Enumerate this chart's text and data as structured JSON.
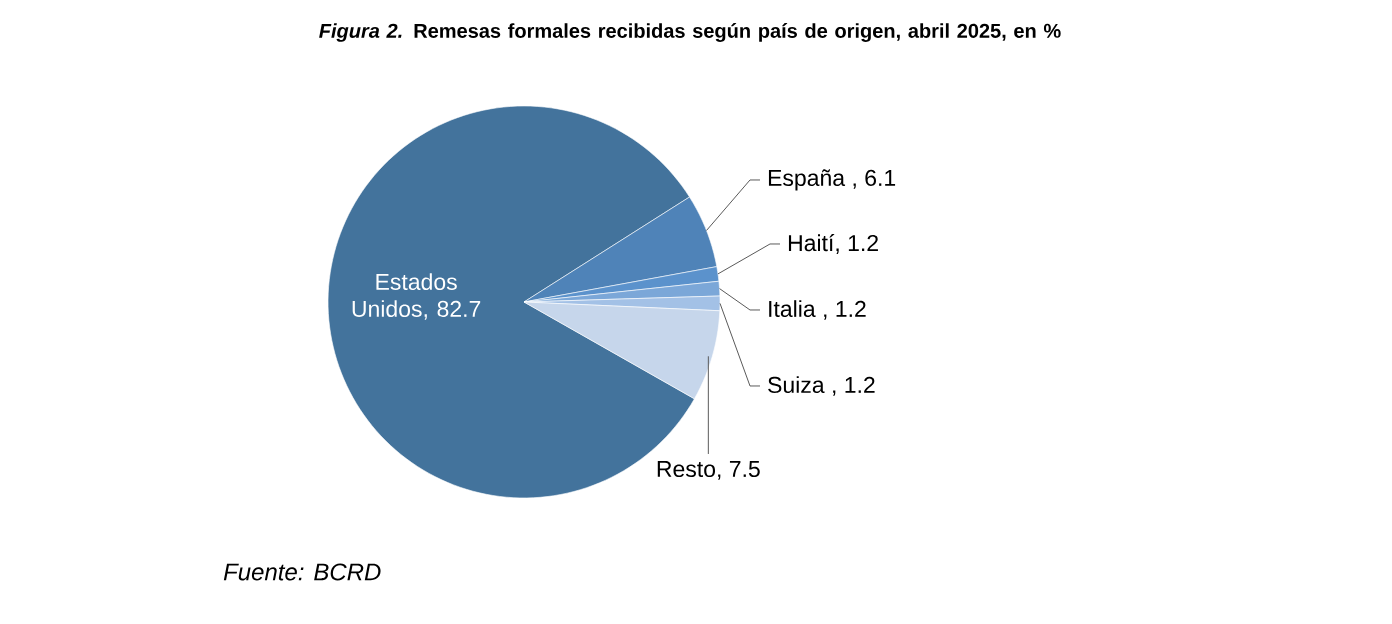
{
  "chart_data": {
    "type": "pie",
    "title": "*Figura 2.* Remesas formales recibidas según país de origen, abril 2025, en %",
    "categories": [
      "Estados Unidos",
      "España",
      "Haití",
      "Italia",
      "Suiza",
      "Resto"
    ],
    "values": [
      82.7,
      6.1,
      1.2,
      1.2,
      1.2,
      7.5
    ],
    "colors": [
      "#43739c",
      "#4f83b8",
      "#5b92cc",
      "#7ba7d8",
      "#a3c1e6",
      "#c6d6eb"
    ],
    "value_labels": [
      ", 82.7",
      " , 6.1",
      ", 1.2",
      " , 1.2",
      " , 1.2",
      ", 7.5"
    ],
    "annotations": [
      "Fuente: BCRD"
    ]
  }
}
